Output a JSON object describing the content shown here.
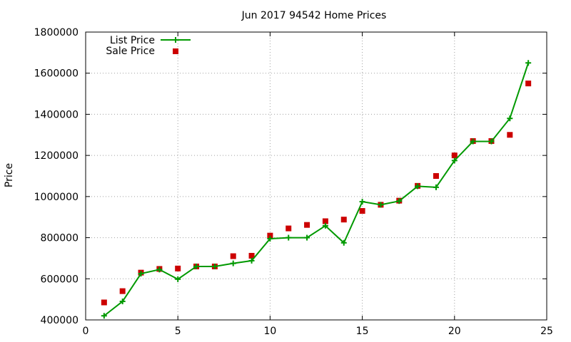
{
  "chart_data": {
    "type": "line",
    "title": "Jun 2017 94542 Home Prices",
    "xlabel": "",
    "ylabel": "Price",
    "xlim": [
      0,
      25
    ],
    "ylim": [
      400000,
      1800000
    ],
    "x_ticks": [
      "0",
      "5",
      "10",
      "15",
      "20",
      "25"
    ],
    "y_ticks": [
      "400000",
      "600000",
      "800000",
      "1000000",
      "1200000",
      "1400000",
      "1600000",
      "1800000"
    ],
    "grid": true,
    "legend_position": "top-left",
    "series": [
      {
        "name": "List Price",
        "style": "line-with-plus-markers",
        "color": "#009900",
        "x": [
          1,
          2,
          3,
          4,
          5,
          6,
          7,
          8,
          9,
          10,
          11,
          12,
          13,
          14,
          15,
          16,
          17,
          18,
          19,
          20,
          21,
          22,
          23,
          24
        ],
        "y": [
          420000,
          490000,
          625000,
          645000,
          598000,
          660000,
          660000,
          675000,
          688000,
          795000,
          800000,
          800000,
          858000,
          775000,
          975000,
          960000,
          978000,
          1050000,
          1045000,
          1175000,
          1268000,
          1268000,
          1380000,
          1650000
        ]
      },
      {
        "name": "Sale Price",
        "style": "square-markers",
        "color": "#cc0000",
        "x": [
          1,
          2,
          3,
          4,
          5,
          6,
          7,
          8,
          9,
          10,
          11,
          12,
          13,
          14,
          15,
          16,
          17,
          18,
          19,
          20,
          21,
          22,
          23,
          24
        ],
        "y": [
          485000,
          540000,
          630000,
          648000,
          650000,
          660000,
          660000,
          710000,
          712000,
          810000,
          845000,
          862000,
          880000,
          888000,
          930000,
          960000,
          980000,
          1052000,
          1100000,
          1200000,
          1270000,
          1270000,
          1300000,
          1550000
        ]
      }
    ]
  }
}
